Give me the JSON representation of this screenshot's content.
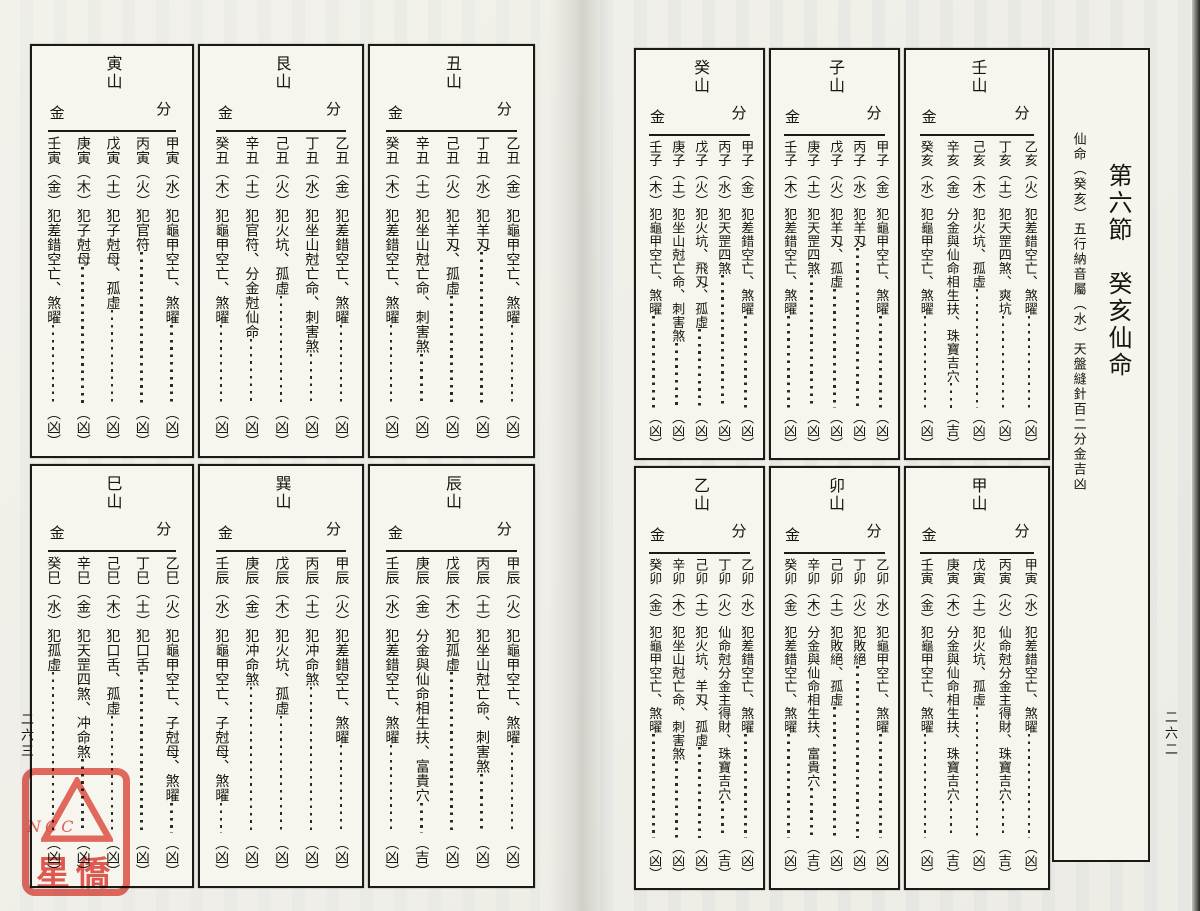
{
  "labels": {
    "fenjin_right": "分",
    "fenjin_left": "金"
  },
  "fmt": {
    "open": "（",
    "close": "）"
  },
  "page_right": {
    "page_number": "二六二",
    "title": "第六節　癸亥仙命",
    "subtitle": "仙命（癸亥）五行納音屬（水）天盤縫針百二分金吉凶",
    "sections": [
      {
        "mountain": "壬山",
        "entries": [
          {
            "stem_branch": "乙亥",
            "element": "火",
            "note": "犯差錯空亡、煞曜",
            "verdict": "凶"
          },
          {
            "stem_branch": "丁亥",
            "element": "土",
            "note": "犯天罡四煞、爽坑",
            "verdict": "凶"
          },
          {
            "stem_branch": "己亥",
            "element": "木",
            "note": "犯火坑、孤虛",
            "verdict": "凶"
          },
          {
            "stem_branch": "辛亥",
            "element": "金",
            "note": "分金與仙命相生扶、珠寶吉穴",
            "verdict": "吉"
          },
          {
            "stem_branch": "癸亥",
            "element": "水",
            "note": "犯龜甲空亡、煞曜",
            "verdict": "凶"
          }
        ]
      },
      {
        "mountain": "子山",
        "entries": [
          {
            "stem_branch": "甲子",
            "element": "金",
            "note": "犯龜甲空亡、煞曜",
            "verdict": "凶"
          },
          {
            "stem_branch": "丙子",
            "element": "水",
            "note": "犯羊刄",
            "verdict": "凶"
          },
          {
            "stem_branch": "戊子",
            "element": "火",
            "note": "犯羊刄、孤虛",
            "verdict": "凶"
          },
          {
            "stem_branch": "庚子",
            "element": "土",
            "note": "犯天罡四煞",
            "verdict": "凶"
          },
          {
            "stem_branch": "壬子",
            "element": "木",
            "note": "犯差錯空亡、煞曜",
            "verdict": "凶"
          }
        ]
      },
      {
        "mountain": "癸山",
        "entries": [
          {
            "stem_branch": "甲子",
            "element": "金",
            "note": "犯差錯空亡、煞曜",
            "verdict": "凶"
          },
          {
            "stem_branch": "丙子",
            "element": "水",
            "note": "犯天罡四煞",
            "verdict": "凶"
          },
          {
            "stem_branch": "戊子",
            "element": "火",
            "note": "犯火坑、飛刄、孤虛",
            "verdict": "凶"
          },
          {
            "stem_branch": "庚子",
            "element": "土",
            "note": "犯坐山尅亡命、刺害煞",
            "verdict": "凶"
          },
          {
            "stem_branch": "壬子",
            "element": "木",
            "note": "犯龜甲空亡、煞曜",
            "verdict": "凶"
          }
        ]
      },
      {
        "mountain": "甲山",
        "entries": [
          {
            "stem_branch": "甲寅",
            "element": "水",
            "note": "犯差錯空亡、煞曜",
            "verdict": "凶"
          },
          {
            "stem_branch": "丙寅",
            "element": "火",
            "note": "仙命尅分金主得財、珠寶吉穴",
            "verdict": "吉"
          },
          {
            "stem_branch": "戊寅",
            "element": "土",
            "note": "犯火坑、孤虛",
            "verdict": "凶"
          },
          {
            "stem_branch": "庚寅",
            "element": "木",
            "note": "分金與仙命相生扶、珠寶吉穴",
            "verdict": "吉"
          },
          {
            "stem_branch": "壬寅",
            "element": "金",
            "note": "犯龜甲空亡、煞曜",
            "verdict": "凶"
          }
        ]
      },
      {
        "mountain": "卯山",
        "entries": [
          {
            "stem_branch": "乙卯",
            "element": "水",
            "note": "犯龜甲空亡、煞曜",
            "verdict": "凶"
          },
          {
            "stem_branch": "丁卯",
            "element": "火",
            "note": "犯敗絕",
            "verdict": "凶"
          },
          {
            "stem_branch": "己卯",
            "element": "土",
            "note": "犯敗絕、孤虛",
            "verdict": "凶"
          },
          {
            "stem_branch": "辛卯",
            "element": "木",
            "note": "分金與仙命相生扶、富貴穴",
            "verdict": "吉"
          },
          {
            "stem_branch": "癸卯",
            "element": "金",
            "note": "犯差錯空亡、煞曜",
            "verdict": "凶"
          }
        ]
      },
      {
        "mountain": "乙山",
        "entries": [
          {
            "stem_branch": "乙卯",
            "element": "水",
            "note": "犯差錯空亡、煞曜",
            "verdict": "凶"
          },
          {
            "stem_branch": "丁卯",
            "element": "火",
            "note": "仙命尅分金主得財、珠寶吉穴",
            "verdict": "吉"
          },
          {
            "stem_branch": "己卯",
            "element": "土",
            "note": "犯火坑、羊刄、孤虛",
            "verdict": "凶"
          },
          {
            "stem_branch": "辛卯",
            "element": "木",
            "note": "犯坐山尅亡命、刺害煞",
            "verdict": "凶"
          },
          {
            "stem_branch": "癸卯",
            "element": "金",
            "note": "犯龜甲空亡、煞曜",
            "verdict": "凶"
          }
        ]
      }
    ]
  },
  "page_left": {
    "page_number": "二六三",
    "sections": [
      {
        "mountain": "丑山",
        "entries": [
          {
            "stem_branch": "乙丑",
            "element": "金",
            "note": "犯龜甲空亡、煞曜",
            "verdict": "凶"
          },
          {
            "stem_branch": "丁丑",
            "element": "水",
            "note": "犯羊刄",
            "verdict": "凶"
          },
          {
            "stem_branch": "己丑",
            "element": "火",
            "note": "犯羊刄、孤虛",
            "verdict": "凶"
          },
          {
            "stem_branch": "辛丑",
            "element": "土",
            "note": "犯坐山尅亡命、刺害煞",
            "verdict": "凶"
          },
          {
            "stem_branch": "癸丑",
            "element": "木",
            "note": "犯差錯空亡、煞曜",
            "verdict": "凶"
          }
        ]
      },
      {
        "mountain": "艮山",
        "entries": [
          {
            "stem_branch": "乙丑",
            "element": "金",
            "note": "犯差錯空亡、煞曜",
            "verdict": "凶"
          },
          {
            "stem_branch": "丁丑",
            "element": "水",
            "note": "犯坐山尅亡命、刺害煞",
            "verdict": "凶"
          },
          {
            "stem_branch": "己丑",
            "element": "火",
            "note": "犯火坑、孤虛",
            "verdict": "凶"
          },
          {
            "stem_branch": "辛丑",
            "element": "土",
            "note": "犯官符、分金尅仙命",
            "verdict": "凶"
          },
          {
            "stem_branch": "癸丑",
            "element": "木",
            "note": "犯龜甲空亡、煞曜",
            "verdict": "凶"
          }
        ]
      },
      {
        "mountain": "寅山",
        "entries": [
          {
            "stem_branch": "甲寅",
            "element": "水",
            "note": "犯龜甲空亡、煞曜",
            "verdict": "凶"
          },
          {
            "stem_branch": "丙寅",
            "element": "火",
            "note": "犯官符",
            "verdict": "凶"
          },
          {
            "stem_branch": "戊寅",
            "element": "土",
            "note": "犯子尅母、孤虛",
            "verdict": "凶"
          },
          {
            "stem_branch": "庚寅",
            "element": "木",
            "note": "犯子尅母",
            "verdict": "凶"
          },
          {
            "stem_branch": "壬寅",
            "element": "金",
            "note": "犯差錯空亡、煞曜",
            "verdict": "凶"
          }
        ]
      },
      {
        "mountain": "辰山",
        "entries": [
          {
            "stem_branch": "甲辰",
            "element": "火",
            "note": "犯龜甲空亡、煞曜",
            "verdict": "凶"
          },
          {
            "stem_branch": "丙辰",
            "element": "土",
            "note": "犯坐山尅亡命、刺害煞",
            "verdict": "凶"
          },
          {
            "stem_branch": "戊辰",
            "element": "木",
            "note": "犯孤虛",
            "verdict": "凶"
          },
          {
            "stem_branch": "庚辰",
            "element": "金",
            "note": "分金與仙命相生扶、富貴穴",
            "verdict": "吉"
          },
          {
            "stem_branch": "壬辰",
            "element": "水",
            "note": "犯差錯空亡、煞曜",
            "verdict": "凶"
          }
        ]
      },
      {
        "mountain": "巽山",
        "entries": [
          {
            "stem_branch": "甲辰",
            "element": "火",
            "note": "犯差錯空亡、煞曜",
            "verdict": "凶"
          },
          {
            "stem_branch": "丙辰",
            "element": "土",
            "note": "犯冲命煞",
            "verdict": "凶"
          },
          {
            "stem_branch": "戊辰",
            "element": "木",
            "note": "犯火坑、孤虛",
            "verdict": "凶"
          },
          {
            "stem_branch": "庚辰",
            "element": "金",
            "note": "犯冲命煞",
            "verdict": "凶"
          },
          {
            "stem_branch": "壬辰",
            "element": "水",
            "note": "犯龜甲空亡、子尅母、煞曜",
            "verdict": "凶"
          }
        ]
      },
      {
        "mountain": "巳山",
        "entries": [
          {
            "stem_branch": "乙巳",
            "element": "火",
            "note": "犯龜甲空亡、子尅母、煞曜",
            "verdict": "凶"
          },
          {
            "stem_branch": "丁巳",
            "element": "土",
            "note": "犯口舌",
            "verdict": "凶"
          },
          {
            "stem_branch": "己巳",
            "element": "木",
            "note": "犯口舌、孤虛",
            "verdict": "凶"
          },
          {
            "stem_branch": "辛巳",
            "element": "金",
            "note": "犯天罡四煞、冲命煞",
            "verdict": "凶"
          },
          {
            "stem_branch": "癸巳",
            "element": "水",
            "note": "犯孤虛",
            "verdict": "凶"
          }
        ]
      }
    ]
  },
  "stamp": {
    "letters": "NCC",
    "name": "星僑"
  }
}
